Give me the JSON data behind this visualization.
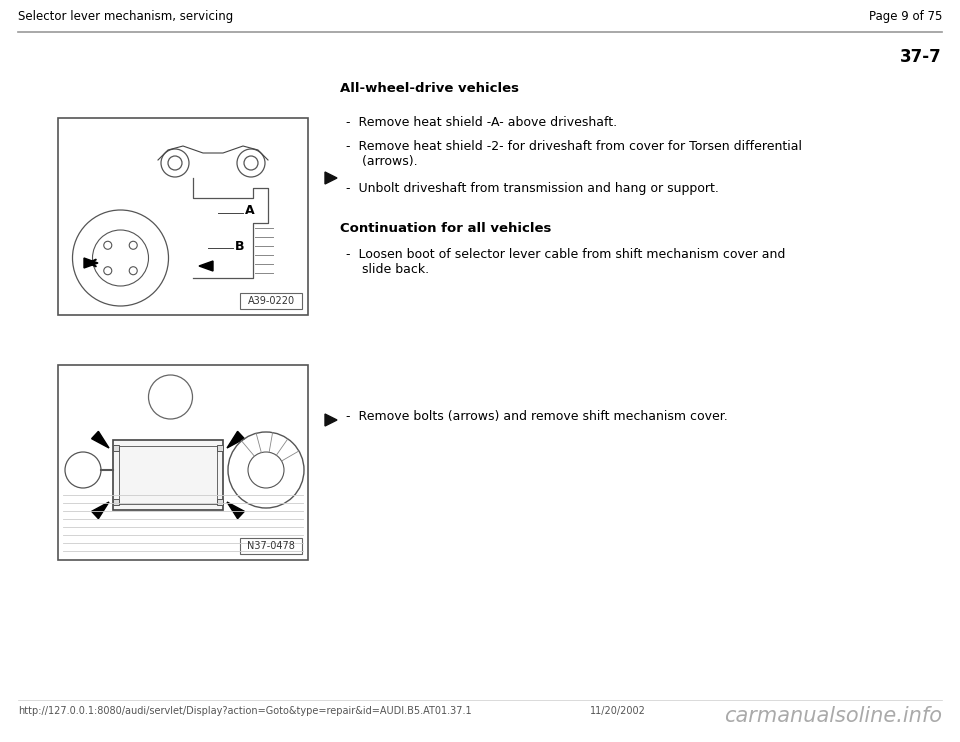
{
  "bg_color": "#ffffff",
  "header_left": "Selector lever mechanism, servicing",
  "header_right": "Page 9 of 75",
  "section_number": "37-7",
  "separator_color": "#999999",
  "heading1": "All-wheel-drive vehicles",
  "heading2": "Continuation for all vehicles",
  "bullet1_1": "-  Remove heat shield -A- above driveshaft.",
  "bullet1_2": "-  Remove heat shield -2- for driveshaft from cover for Torsen differential\n    (arrows).",
  "bullet1_3": "-  Unbolt driveshaft from transmission and hang or support.",
  "bullet2_1": "-  Loosen boot of selector lever cable from shift mechanism cover and\n    slide back.",
  "bullet3_1": "-  Remove bolts (arrows) and remove shift mechanism cover.",
  "img1_label": "A39-0220",
  "img2_label": "N37-0478",
  "footer_url": "http://127.0.0.1:8080/audi/servlet/Display?action=Goto&type=repair&id=AUDI.B5.AT01.37.1",
  "footer_date": "11/20/2002",
  "footer_watermark": "carmanualsoline.info",
  "text_color": "#000000",
  "gray_text": "#555555",
  "header_font_size": 8.5,
  "body_font_size": 9,
  "heading_font_size": 9.5,
  "section_font_size": 12,
  "footer_font_size": 7,
  "watermark_font_size": 15,
  "img_border_color": "#555555",
  "img_bg_color": "#ffffff",
  "img_label_bg": "#ffffff",
  "img_label_border": "#666666",
  "arrow_indicator_color": "#111111"
}
